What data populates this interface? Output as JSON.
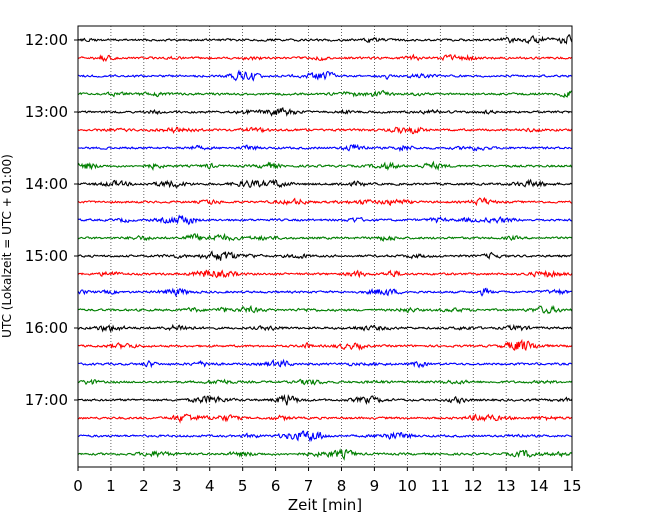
{
  "chart_data": {
    "type": "line",
    "title": "",
    "xlabel": "Zeit  [min]",
    "ylabel": "UTC (Lokalzeit = UTC + 01:00)",
    "xlim": [
      0,
      15
    ],
    "x_ticks": [
      "0",
      "1",
      "2",
      "3",
      "4",
      "5",
      "6",
      "7",
      "8",
      "9",
      "10",
      "11",
      "12",
      "13",
      "14",
      "15"
    ],
    "y_ticks": [
      "12:00",
      "13:00",
      "14:00",
      "15:00",
      "16:00",
      "17:00"
    ],
    "grid": "vertical dotted",
    "trace_interval_min": 15,
    "trace_start": "12:00",
    "trace_end": "17:45",
    "trace_colors": [
      "#000000",
      "#ff0000",
      "#0000ff",
      "#007f00"
    ],
    "trace_count": 24
  }
}
